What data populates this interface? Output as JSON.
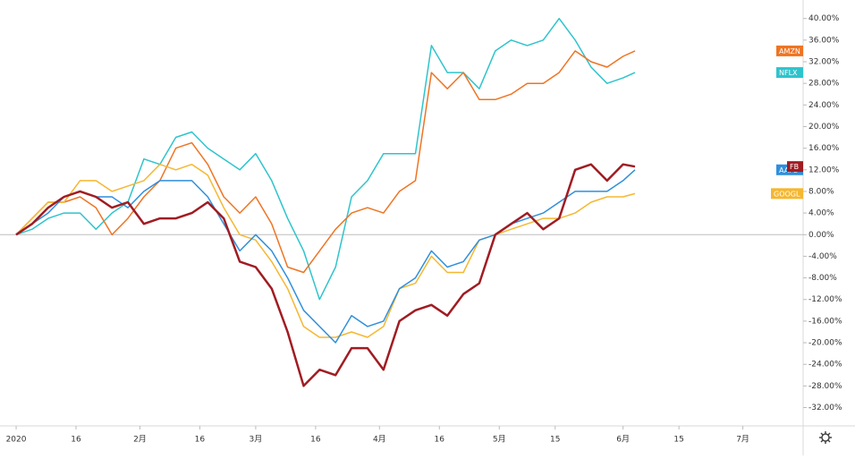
{
  "chart_data": {
    "type": "line",
    "x": [
      0,
      4,
      8,
      12,
      16,
      20,
      24,
      28,
      32,
      36,
      40,
      44,
      48,
      52,
      56,
      60,
      64,
      68,
      72,
      76,
      80,
      84,
      88,
      92,
      96,
      100,
      104,
      108,
      112,
      116,
      120,
      124,
      128,
      132,
      136,
      140,
      144,
      148,
      152,
      155
    ],
    "xlim": [
      -4.04,
      197.1
    ],
    "xticks": [
      {
        "value": 0,
        "label": "2020"
      },
      {
        "value": 15,
        "label": "16"
      },
      {
        "value": 31,
        "label": "2月"
      },
      {
        "value": 46,
        "label": "16"
      },
      {
        "value": 60,
        "label": "3月"
      },
      {
        "value": 75,
        "label": "16"
      },
      {
        "value": 91,
        "label": "4月"
      },
      {
        "value": 106,
        "label": "16"
      },
      {
        "value": 121,
        "label": "5月"
      },
      {
        "value": 135,
        "label": "15"
      },
      {
        "value": 152,
        "label": "6月"
      },
      {
        "value": 166,
        "label": "15"
      },
      {
        "value": 182,
        "label": "7月"
      }
    ],
    "ylim": [
      -34.4,
      42.1
    ],
    "yticks": [
      {
        "value": -32,
        "label": "-32.00%"
      },
      {
        "value": -28,
        "label": "-28.00%"
      },
      {
        "value": -24,
        "label": "-24.00%"
      },
      {
        "value": -20,
        "label": "-20.00%"
      },
      {
        "value": -16,
        "label": "-16.00%"
      },
      {
        "value": -12,
        "label": "-12.00%"
      },
      {
        "value": -8,
        "label": "-8.00%"
      },
      {
        "value": -4,
        "label": "-4.00%"
      },
      {
        "value": 0,
        "label": "0.00%"
      },
      {
        "value": 4,
        "label": "4.00%"
      },
      {
        "value": 8,
        "label": "8.00%"
      },
      {
        "value": 12,
        "label": "12.00%"
      },
      {
        "value": 16,
        "label": "16.00%"
      },
      {
        "value": 20,
        "label": "20.00%"
      },
      {
        "value": 24,
        "label": "24.00%"
      },
      {
        "value": 28,
        "label": "28.00%"
      },
      {
        "value": 32,
        "label": "32.00%"
      },
      {
        "value": 36,
        "label": "36.00%"
      },
      {
        "value": 40,
        "label": "40.00%"
      }
    ],
    "series": [
      {
        "name": "NFLX",
        "color": "#2ec4cc",
        "values": [
          0,
          1,
          3,
          4,
          4,
          1,
          4,
          6,
          14,
          13,
          18,
          19,
          16,
          14,
          12,
          15,
          10,
          3,
          -3,
          -12,
          -6,
          7,
          10,
          15,
          15,
          15,
          35,
          30,
          30,
          27,
          34,
          36,
          35,
          36,
          40,
          36,
          31,
          28,
          29,
          30
        ]
      },
      {
        "name": "AMZN",
        "color": "#ef7423",
        "values": [
          0,
          3,
          6,
          6,
          7,
          5,
          0,
          3,
          7,
          10,
          16,
          17,
          13,
          7,
          4,
          7,
          2,
          -6,
          -7,
          -3,
          1,
          4,
          5,
          4,
          8,
          10,
          30,
          27,
          30,
          25,
          25,
          26,
          28,
          28,
          30,
          34,
          32,
          31,
          33,
          34
        ]
      },
      {
        "name": "GOOGL",
        "color": "#f5b731",
        "values": [
          0,
          3,
          6,
          6,
          10,
          10,
          8,
          9,
          10,
          13,
          12,
          13,
          11,
          5,
          0,
          -1,
          -5,
          -10,
          -17,
          -19,
          -19,
          -18,
          -19,
          -17,
          -10,
          -9,
          -4,
          -7,
          -7,
          -1,
          0,
          1,
          2,
          3,
          3,
          4,
          6,
          7,
          7,
          7.6
        ]
      },
      {
        "name": "AAPL",
        "color": "#2f8fdc",
        "values": [
          0,
          2,
          4,
          7,
          8,
          7,
          7,
          5,
          8,
          10,
          10,
          10,
          7,
          2,
          -3,
          0,
          -3,
          -8,
          -14,
          -17,
          -20,
          -15,
          -17,
          -16,
          -10,
          -8,
          -3,
          -6,
          -5,
          -1,
          0,
          2,
          3,
          4,
          6,
          8,
          8,
          8,
          10,
          12
        ]
      },
      {
        "name": "FB",
        "color": "#a01c22",
        "values": [
          0,
          2,
          5,
          7,
          8,
          7,
          5,
          6,
          2,
          3,
          3,
          4,
          6,
          3,
          -5,
          -6,
          -10,
          -18,
          -28,
          -25,
          -26,
          -21,
          -21,
          -25,
          -16,
          -14,
          -13,
          -15,
          -11,
          -9,
          0,
          2,
          4,
          1,
          3,
          12,
          13,
          10,
          13,
          12.6
        ]
      }
    ]
  }
}
